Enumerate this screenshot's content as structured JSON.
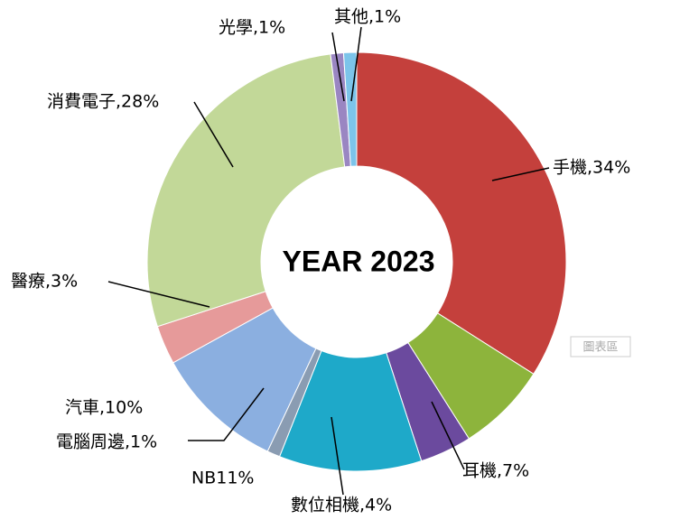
{
  "chart_data": {
    "type": "donut",
    "title": "YEAR 2023",
    "categories": [
      "手機,34%",
      "耳機,7%",
      "數位相機,4%",
      "NB11%",
      "電腦周邊,1%",
      "汽車,10%",
      "醫療,3%",
      "消費電子,28%",
      "光學,1%",
      "其他,1%"
    ],
    "values": [
      34,
      7,
      4,
      11,
      1,
      10,
      3,
      28,
      1,
      1
    ],
    "colors": [
      "#c4403c",
      "#8db43c",
      "#6b4a9e",
      "#1ea9c9",
      "#8a9cb2",
      "#8bafe0",
      "#e69a9a",
      "#c2d898",
      "#9a86c2",
      "#7cc4ea"
    ],
    "tooltip": "圖表區"
  }
}
